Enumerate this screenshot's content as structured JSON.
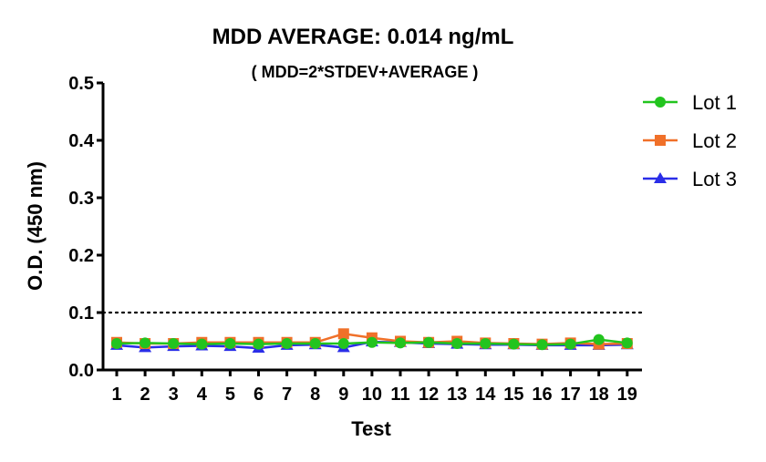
{
  "chart_data": {
    "type": "line",
    "title": "MDD AVERAGE:  0.014 ng/mL",
    "subtitle": "( MDD=2*STDEV+AVERAGE )",
    "xlabel": "Test",
    "ylabel": "O.D. (450 nm)",
    "categories": [
      "1",
      "2",
      "3",
      "4",
      "5",
      "6",
      "7",
      "8",
      "9",
      "10",
      "11",
      "12",
      "13",
      "14",
      "15",
      "16",
      "17",
      "18",
      "19"
    ],
    "ylim": [
      0,
      0.5
    ],
    "yticks": [
      "0.0",
      "0.1",
      "0.2",
      "0.3",
      "0.4",
      "0.5"
    ],
    "ytick_values": [
      0,
      0.1,
      0.2,
      0.3,
      0.4,
      0.5
    ],
    "reference_line": {
      "y": 0.1,
      "style": "dotted",
      "color": "#000000"
    },
    "legend_position": "top-right",
    "grid": false,
    "series": [
      {
        "name": "Lot 1",
        "color": "#22c41e",
        "marker": "circle",
        "values": [
          0.046,
          0.047,
          0.046,
          0.045,
          0.046,
          0.045,
          0.046,
          0.046,
          0.046,
          0.048,
          0.047,
          0.048,
          0.046,
          0.046,
          0.045,
          0.044,
          0.045,
          0.053,
          0.047
        ]
      },
      {
        "name": "Lot 2",
        "color": "#f07029",
        "marker": "square",
        "values": [
          0.048,
          0.046,
          0.046,
          0.048,
          0.048,
          0.048,
          0.048,
          0.048,
          0.063,
          0.056,
          0.05,
          0.048,
          0.05,
          0.047,
          0.046,
          0.045,
          0.047,
          0.045,
          0.046
        ]
      },
      {
        "name": "Lot 3",
        "color": "#2a2ee8",
        "marker": "triangle",
        "values": [
          0.043,
          0.039,
          0.041,
          0.042,
          0.041,
          0.038,
          0.043,
          0.044,
          0.039,
          0.049,
          0.048,
          0.046,
          0.045,
          0.044,
          0.044,
          0.043,
          0.043,
          0.043,
          0.044
        ]
      }
    ]
  }
}
